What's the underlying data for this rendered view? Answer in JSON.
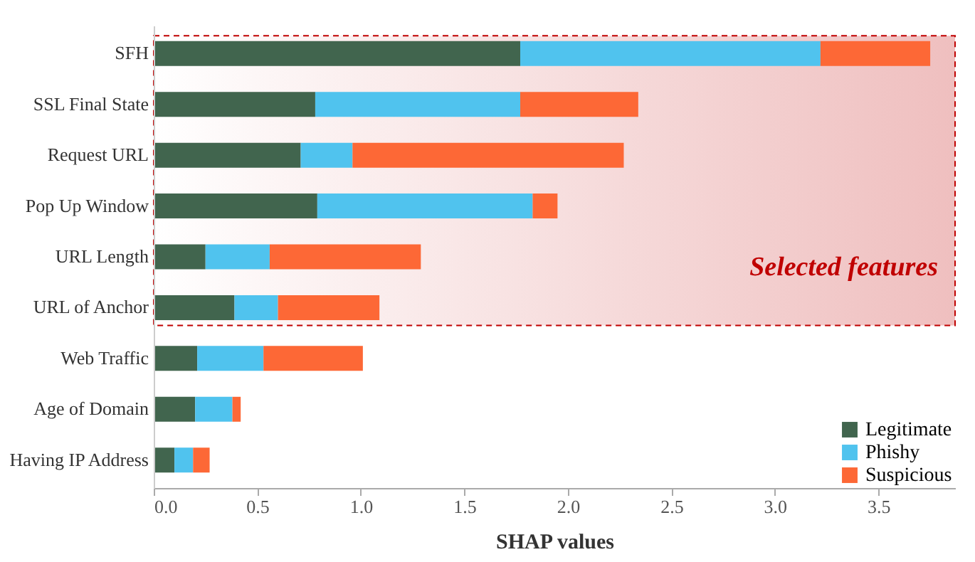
{
  "chart_data": {
    "type": "bar",
    "orientation": "horizontal",
    "stacked": true,
    "xlabel": "SHAP values",
    "categories": [
      "SFH",
      "SSL Final State",
      "Request URL",
      "Pop Up Window",
      "URL Length",
      "URL of Anchor",
      "Web Traffic",
      "Age of Domain",
      "Having IP Address"
    ],
    "series": [
      {
        "name": "Legitimate",
        "color": "#41654e",
        "values": [
          1.77,
          0.78,
          0.71,
          0.79,
          0.25,
          0.39,
          0.21,
          0.2,
          0.1
        ]
      },
      {
        "name": "Phishy",
        "color": "#50c3ee",
        "values": [
          1.45,
          0.99,
          0.25,
          1.04,
          0.31,
          0.21,
          0.32,
          0.18,
          0.09
        ]
      },
      {
        "name": "Suspicious",
        "color": "#fd6836",
        "values": [
          0.53,
          0.57,
          1.31,
          0.12,
          0.73,
          0.49,
          0.48,
          0.04,
          0.08
        ]
      }
    ],
    "xlim": [
      0,
      3.87
    ],
    "xticks": [
      {
        "value": 0,
        "label": "0.0"
      },
      0.5,
      {
        "value": 1,
        "label": "1.0"
      },
      1.5,
      {
        "value": 2,
        "label": "2.0"
      },
      2.5,
      {
        "value": 3,
        "label": "3.0"
      },
      3.5
    ],
    "bands": [
      {
        "axis": "y",
        "from": "SFH",
        "to": "URL of Anchor",
        "label": "Selected features",
        "color": "#c00000"
      }
    ],
    "legend": "bottom right",
    "grid": false
  }
}
